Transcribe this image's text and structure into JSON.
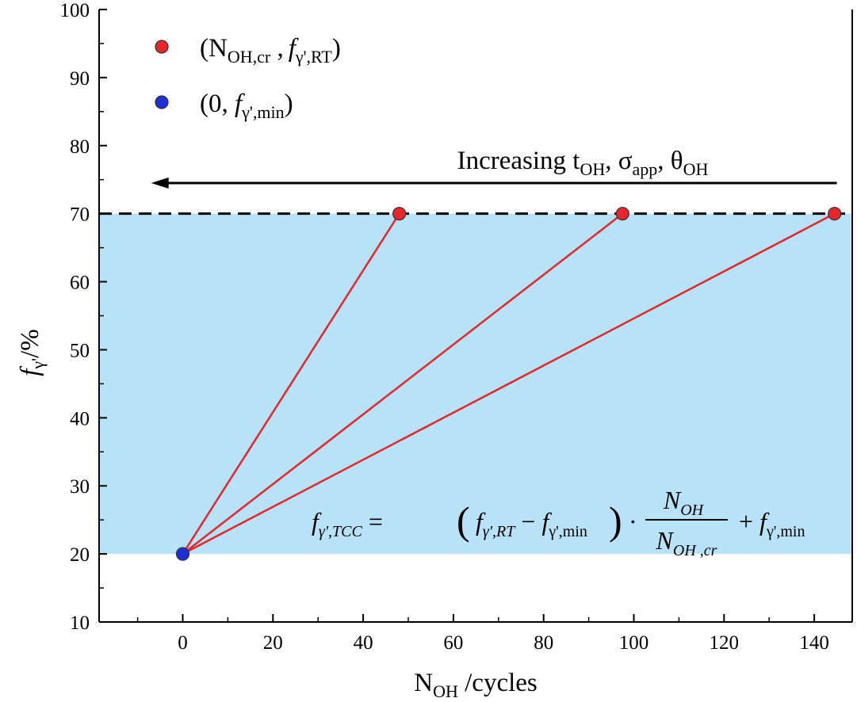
{
  "chart_data": {
    "type": "line",
    "xlabel": {
      "main": "N",
      "sub": "OH",
      "tail": " /cycles"
    },
    "ylabel": {
      "f": "f",
      "sub": "γ'",
      "tail": "/%"
    },
    "xlim": [
      -20,
      150
    ],
    "ylim": [
      10,
      100
    ],
    "x_ticks": [
      0,
      20,
      40,
      60,
      80,
      100,
      120,
      140
    ],
    "y_ticks": [
      10,
      20,
      30,
      40,
      50,
      60,
      70,
      80,
      90,
      100
    ],
    "x_tick_labels": [
      "0",
      "20",
      "40",
      "60",
      "80",
      "100",
      "120",
      "140"
    ],
    "y_tick_labels": [
      "10",
      "20",
      "30",
      "40",
      "50",
      "60",
      "70",
      "80",
      "90",
      "100"
    ],
    "grid": false,
    "shaded_band": {
      "y_from": 20,
      "y_to": 70,
      "color": "#b7e2f8"
    },
    "reference_line": {
      "y": 70,
      "style": "dashed",
      "color": "#000000"
    },
    "series": [
      {
        "x": [
          0,
          48
        ],
        "y": [
          20,
          70
        ],
        "color": "#e8262a"
      },
      {
        "x": [
          0,
          97.5
        ],
        "y": [
          20,
          70
        ],
        "color": "#e8262a"
      },
      {
        "x": [
          0,
          144.5
        ],
        "y": [
          20,
          70
        ],
        "color": "#e8262a"
      }
    ],
    "red_points": [
      [
        48,
        70
      ],
      [
        97.5,
        70
      ],
      [
        144.5,
        70
      ]
    ],
    "blue_point": [
      0,
      20
    ],
    "legend": {
      "placement": "top-left",
      "entries": [
        {
          "color": "#e8262a",
          "label": {
            "p1": "(N",
            "s1": "OH,cr",
            "p2": " ,",
            "f": "f",
            "s2": "γ',RT",
            "p3": ")"
          }
        },
        {
          "color": "#1f2fd8",
          "label": {
            "p1": "(0, ",
            "f": "f",
            "s2": "γ',min",
            "p3": ")"
          }
        }
      ]
    },
    "annotation": {
      "text": {
        "p1": "Increasing t",
        "s1": "OH",
        "p2": ", σ",
        "s2": "app",
        "p3": ", θ",
        "s3": "OH"
      },
      "arrow_direction": "left",
      "arrow_from": [
        145,
        74.5
      ],
      "arrow_to": [
        -7,
        74.5
      ]
    },
    "equation": {
      "lhs_f": "f",
      "lhs_sub": "γ',TCC",
      "eq": "=",
      "f1": "f",
      "s1": "γ',RT",
      "minus": "−",
      "f2": "f",
      "s2": "γ',min",
      "dot": "·",
      "num": "N",
      "num_sub": "OH",
      "den": "N",
      "den_sub": "OH ,cr",
      "plus": "+",
      "f3": "f",
      "s3": "γ',min"
    }
  }
}
